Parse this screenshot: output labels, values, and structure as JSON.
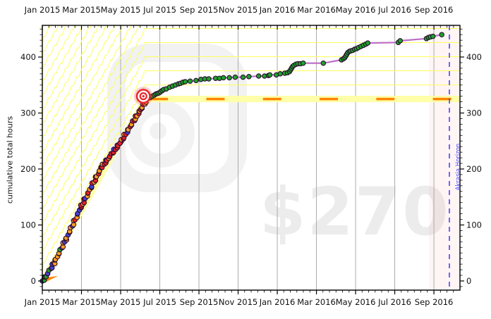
{
  "figure": {
    "background": "#ffffff",
    "watermark_pledge": "$270",
    "watermark_logo": "beeminder-bee-logo"
  },
  "chart_data": {
    "type": "line",
    "title": "",
    "xlabel": "",
    "ylabel": "cumulative total hours",
    "x_axis": {
      "unit": "months since Jan 2015",
      "xlim": [
        0,
        21.33
      ],
      "major_tick_step_months": 2,
      "minor_tick_step_months": 0.3333,
      "tick_labels": [
        "Jan 2015",
        "Mar 2015",
        "May 2015",
        "Jul 2015",
        "Sep 2015",
        "Nov 2015",
        "Jan 2016",
        "Mar 2016",
        "May 2016",
        "Jul 2016",
        "Sep 2016"
      ],
      "labels_on_top_and_bottom": true
    },
    "y_axis": {
      "ylim": [
        -16.4,
        456.6
      ],
      "major_ticks": [
        0,
        100,
        200,
        300,
        400
      ],
      "minor_tick_step": 10,
      "labels_on_left_and_right": true
    },
    "grid": {
      "vertical_gridlines_at_major_ticks": true,
      "color": "#ababab"
    },
    "yellow_brick_road": {
      "start": {
        "m": 0.0,
        "v": 0
      },
      "corner": {
        "m": 5.23,
        "v": 325
      },
      "end_m": 21.33,
      "band_halfwidth_hours": 5.7,
      "band_color": "#ffffa8",
      "centerline_color": "#ff8500"
    },
    "guidelines": {
      "count": 18,
      "spacing_hours": 25.2,
      "color": "#ffff5e"
    },
    "bullseye": {
      "m": 5.16,
      "v": 330,
      "colors": [
        "#e8272c",
        "#ffffff"
      ]
    },
    "akrasia_horizon": {
      "m": 20.79,
      "label": "Akrasia Horizon",
      "color": "#4545ff"
    },
    "pledge_amount": "$270",
    "series": {
      "name": "cumulative total hours",
      "line_color": "#bc6ec6",
      "point_colors": {
        "g": "#1fa32b",
        "b": "#4343d9",
        "o": "#ffa025",
        "r": "#e62227"
      },
      "steep_segments": [
        [
          0.0,
          0,
          0.18,
          8,
          4,
          "bggg"
        ],
        [
          0.18,
          8,
          0.6,
          32,
          8,
          "ggbgobbo"
        ],
        [
          0.6,
          32,
          1.2,
          74,
          12,
          "oboobogboobo"
        ],
        [
          1.2,
          74,
          2.0,
          134,
          16,
          "oobroobooroobbor"
        ],
        [
          2.0,
          134,
          3.0,
          202,
          20,
          "rorrborrorbrorrorbor"
        ],
        [
          3.0,
          202,
          4.0,
          248,
          20,
          "rrorrbrorrrorbrrorrr"
        ],
        [
          4.0,
          248,
          5.0,
          305,
          20,
          "rorrorbrorrorrororoo"
        ],
        [
          5.0,
          305,
          5.33,
          323,
          7,
          "rroroob"
        ]
      ],
      "points": [
        [
          5.38,
          326,
          "b"
        ],
        [
          5.45,
          327,
          "g"
        ],
        [
          5.52,
          328,
          "g"
        ],
        [
          5.62,
          330,
          "g"
        ],
        [
          5.72,
          332,
          "g"
        ],
        [
          5.8,
          334,
          "g"
        ],
        [
          5.88,
          335,
          "g"
        ],
        [
          5.96,
          336,
          "g"
        ],
        [
          6.04,
          338,
          "g"
        ],
        [
          6.12,
          340,
          "g"
        ],
        [
          6.2,
          342,
          "g"
        ],
        [
          6.33,
          343,
          "g"
        ],
        [
          6.5,
          346,
          "g"
        ],
        [
          6.65,
          348,
          "g"
        ],
        [
          6.8,
          350,
          "g"
        ],
        [
          6.95,
          352,
          "g"
        ],
        [
          7.05,
          353,
          "g"
        ],
        [
          7.18,
          355,
          "g"
        ],
        [
          7.3,
          356,
          "g"
        ],
        [
          7.55,
          357,
          "g"
        ],
        [
          7.85,
          358,
          "g"
        ],
        [
          8.1,
          360,
          "g"
        ],
        [
          8.3,
          361,
          "g"
        ],
        [
          8.5,
          361,
          "g"
        ],
        [
          8.85,
          362,
          "g"
        ],
        [
          9.05,
          362,
          "g"
        ],
        [
          9.25,
          363,
          "g"
        ],
        [
          9.55,
          363,
          "g"
        ],
        [
          9.85,
          364,
          "g"
        ],
        [
          10.25,
          364,
          "g"
        ],
        [
          10.55,
          365,
          "g"
        ],
        [
          11.05,
          366,
          "g"
        ],
        [
          11.35,
          366,
          "g"
        ],
        [
          11.55,
          367,
          "g"
        ],
        [
          11.62,
          368,
          "g"
        ],
        [
          11.95,
          368,
          "g"
        ],
        [
          12.15,
          370,
          "g"
        ],
        [
          12.38,
          371,
          "g"
        ],
        [
          12.52,
          372,
          "g"
        ],
        [
          12.62,
          374,
          "g"
        ],
        [
          12.68,
          377,
          "g"
        ],
        [
          12.73,
          380,
          "g"
        ],
        [
          12.78,
          383,
          "g"
        ],
        [
          12.85,
          385,
          "g"
        ],
        [
          12.95,
          387,
          "g"
        ],
        [
          13.05,
          388,
          "g"
        ],
        [
          13.18,
          388,
          "g"
        ],
        [
          13.32,
          389,
          "g"
        ],
        [
          14.35,
          389,
          "g"
        ],
        [
          15.28,
          395,
          "g"
        ],
        [
          15.38,
          397,
          "g"
        ],
        [
          15.45,
          399,
          "g"
        ],
        [
          15.5,
          402,
          "g"
        ],
        [
          15.55,
          405,
          "g"
        ],
        [
          15.6,
          408,
          "g"
        ],
        [
          15.68,
          410,
          "g"
        ],
        [
          15.75,
          411,
          "g"
        ],
        [
          15.85,
          412,
          "g"
        ],
        [
          15.95,
          414,
          "g"
        ],
        [
          16.05,
          415,
          "g"
        ],
        [
          16.15,
          417,
          "g"
        ],
        [
          16.28,
          419,
          "g"
        ],
        [
          16.4,
          421,
          "g"
        ],
        [
          16.52,
          423,
          "g"
        ],
        [
          16.62,
          425,
          "g"
        ],
        [
          18.18,
          426,
          "g"
        ],
        [
          18.28,
          429,
          "g"
        ],
        [
          19.62,
          433,
          "g"
        ],
        [
          19.72,
          435,
          "g"
        ],
        [
          19.82,
          436,
          "g"
        ],
        [
          19.95,
          437,
          "g"
        ],
        [
          20.4,
          440,
          "g"
        ]
      ]
    }
  }
}
